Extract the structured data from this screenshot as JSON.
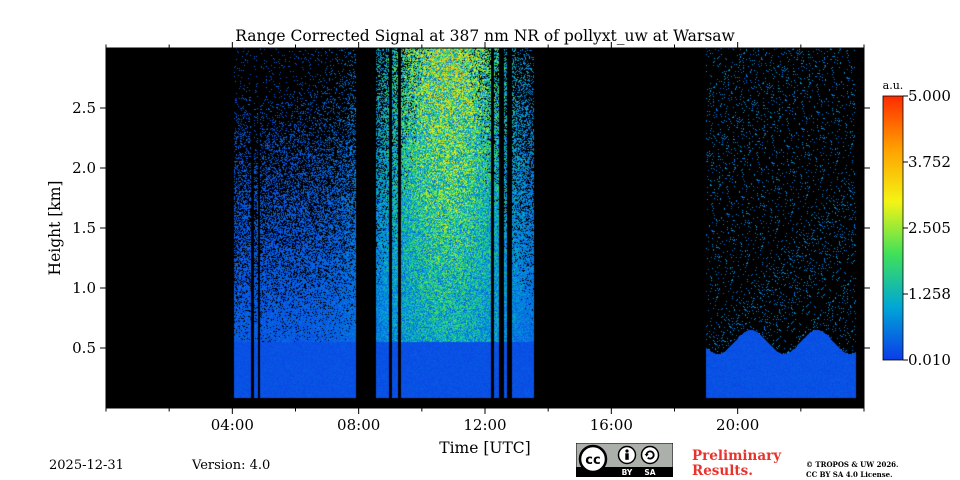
{
  "chart_data": {
    "type": "heatmap",
    "title": "Range Corrected Signal at 387 nm NR of pollyxt_uw at Warsaw",
    "xlabel": "Time [UTC]",
    "ylabel": "Height [km]",
    "xlim_hours": [
      0,
      24
    ],
    "ylim_km": [
      0,
      3.0
    ],
    "x_ticks": [
      {
        "hour": 4,
        "label": "04:00"
      },
      {
        "hour": 8,
        "label": "08:00"
      },
      {
        "hour": 12,
        "label": "12:00"
      },
      {
        "hour": 16,
        "label": "16:00"
      },
      {
        "hour": 20,
        "label": "20:00"
      }
    ],
    "y_ticks": [
      {
        "km": 0.5,
        "label": "0.5"
      },
      {
        "km": 1.0,
        "label": "1.0"
      },
      {
        "km": 1.5,
        "label": "1.5"
      },
      {
        "km": 2.0,
        "label": "2.0"
      },
      {
        "km": 2.5,
        "label": "2.5"
      }
    ],
    "colorbar": {
      "unit": "a.u.",
      "min": 0.01,
      "max": 5.0,
      "ticks": [
        "0.010",
        "1.258",
        "2.505",
        "3.752",
        "5.000"
      ],
      "colormap": [
        "#0b3ce8",
        "#00a6d6",
        "#3fe05a",
        "#f4f414",
        "#ffa000",
        "#ff2b00"
      ]
    },
    "background_color": "#000000",
    "no_data_intervals_hours": [
      [
        0,
        4.05
      ],
      [
        7.9,
        8.55
      ],
      [
        13.55,
        19.0
      ],
      [
        23.75,
        24
      ]
    ],
    "data_gaps_hours": [
      [
        4.6,
        4.7
      ],
      [
        4.8,
        4.88
      ],
      [
        8.95,
        9.05
      ],
      [
        9.25,
        9.35
      ],
      [
        12.2,
        12.3
      ],
      [
        12.45,
        12.6
      ],
      [
        12.7,
        12.85
      ]
    ],
    "low_signal_layer_top_km": 0.55
  },
  "footer": {
    "date": "2025-12-31",
    "version": "Version: 4.0",
    "preliminary": [
      "Preliminary",
      "Results."
    ],
    "license": [
      "© TROPOS & UW 2026.",
      "CC BY SA 4.0 License."
    ],
    "cc_badge": {
      "cc": "cc",
      "by": "BY",
      "sa": "SA"
    }
  }
}
